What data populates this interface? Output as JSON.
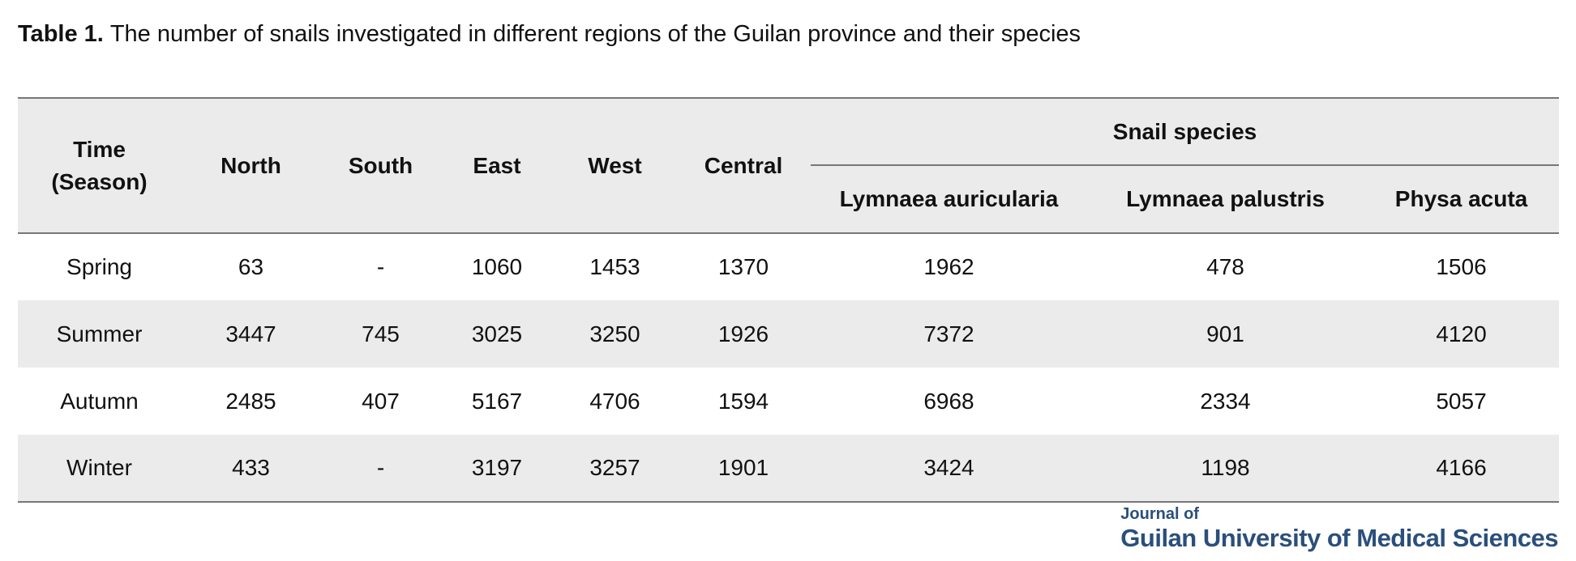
{
  "caption": {
    "label": "Table 1.",
    "text": "The number of snails investigated in different regions of the Guilan province and their species"
  },
  "table": {
    "header": {
      "time": "Time (Season)",
      "regions": [
        "North",
        "South",
        "East",
        "West",
        "Central"
      ],
      "group": "Snail species",
      "species": [
        "Lymnaea auricularia",
        "Lymnaea palustris",
        "Physa acuta"
      ]
    },
    "rows": [
      [
        "Spring",
        "63",
        "-",
        "1060",
        "1453",
        "1370",
        "1962",
        "478",
        "1506"
      ],
      [
        "Summer",
        "3447",
        "745",
        "3025",
        "3250",
        "1926",
        "7372",
        "901",
        "4120"
      ],
      [
        "Autumn",
        "2485",
        "407",
        "5167",
        "4706",
        "1594",
        "6968",
        "2334",
        "5057"
      ],
      [
        "Winter",
        "433",
        "-",
        "3197",
        "3257",
        "1901",
        "3424",
        "1198",
        "4166"
      ]
    ]
  },
  "logo": {
    "line1": "Journal of",
    "line2": "Guilan University of Medical Sciences"
  }
}
